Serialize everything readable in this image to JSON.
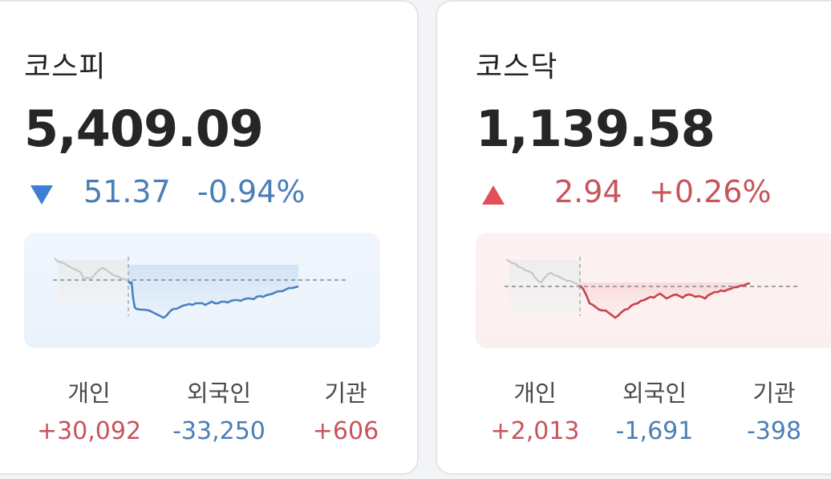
{
  "kospi": {
    "name": "코스피",
    "value": "5,409.09",
    "direction": "down",
    "change": "51.37",
    "change_pct": "-0.94%",
    "investors": [
      {
        "label": "개인",
        "value": "+30,092",
        "trend": "up"
      },
      {
        "label": "외국인",
        "value": "-33,250",
        "trend": "down"
      },
      {
        "label": "기관",
        "value": "+606",
        "trend": "up"
      }
    ]
  },
  "kosdaq": {
    "name": "코스닥",
    "value": "1,139.58",
    "direction": "up",
    "change": "2.94",
    "change_pct": "+0.26%",
    "investors": [
      {
        "label": "개인",
        "value": "+2,013",
        "trend": "up"
      },
      {
        "label": "외국인",
        "value": "-1,691",
        "trend": "down"
      },
      {
        "label": "기관",
        "value": "-398",
        "trend": "down"
      }
    ]
  },
  "colors": {
    "up": "#c8545c",
    "down": "#4a7fb6",
    "up_triangle": "#e05058",
    "down_triangle": "#3e7fd6",
    "prior_line": "#bdbdbd"
  }
}
